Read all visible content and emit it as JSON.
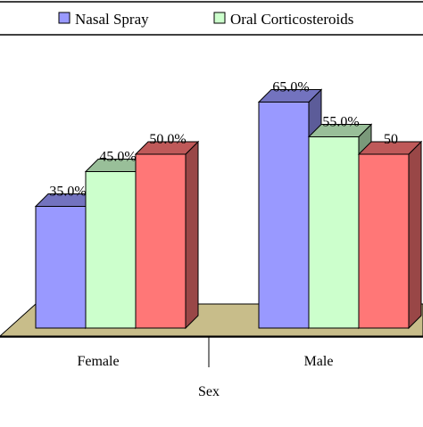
{
  "chart_data": {
    "type": "bar",
    "categories": [
      "Female",
      "Male"
    ],
    "xlabel": "Sex",
    "series": [
      {
        "name": "Nasal Spray",
        "values": [
          35.0,
          65.0
        ],
        "labels": [
          "35.0%",
          "65.0%"
        ],
        "color": "#9999ff"
      },
      {
        "name": "Oral Corticosteroids",
        "values": [
          45.0,
          55.0
        ],
        "labels": [
          "45.0%",
          "55.0%"
        ],
        "color": "#ccffcc"
      },
      {
        "name": "",
        "values": [
          50.0,
          50.0
        ],
        "labels": [
          "50.0%",
          "50"
        ],
        "color": "#ff7777"
      }
    ],
    "ylim": [
      0,
      70
    ],
    "grid": false,
    "legend_position": "top",
    "floor_color": "#c8bd8a",
    "three_d": true
  }
}
